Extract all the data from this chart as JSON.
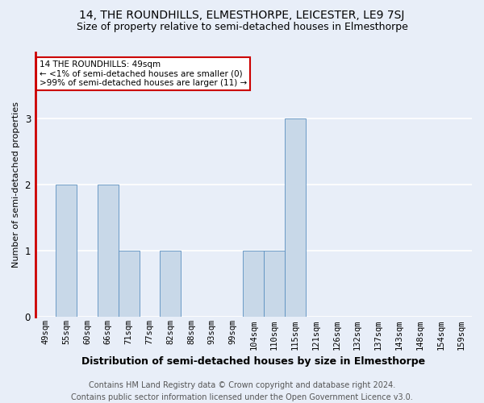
{
  "title": "14, THE ROUNDHILLS, ELMESTHORPE, LEICESTER, LE9 7SJ",
  "subtitle": "Size of property relative to semi-detached houses in Elmesthorpe",
  "xlabel": "Distribution of semi-detached houses by size in Elmesthorpe",
  "ylabel": "Number of semi-detached properties",
  "footer_line1": "Contains HM Land Registry data © Crown copyright and database right 2024.",
  "footer_line2": "Contains public sector information licensed under the Open Government Licence v3.0.",
  "categories": [
    "49sqm",
    "55sqm",
    "60sqm",
    "66sqm",
    "71sqm",
    "77sqm",
    "82sqm",
    "88sqm",
    "93sqm",
    "99sqm",
    "104sqm",
    "110sqm",
    "115sqm",
    "121sqm",
    "126sqm",
    "132sqm",
    "137sqm",
    "143sqm",
    "148sqm",
    "154sqm",
    "159sqm"
  ],
  "values": [
    0,
    2,
    0,
    2,
    1,
    0,
    1,
    0,
    0,
    0,
    1,
    1,
    3,
    0,
    0,
    0,
    0,
    0,
    0,
    0,
    0
  ],
  "bar_color": "#c8d8e8",
  "bar_edge_color": "#5a8fc0",
  "highlight_bar_index": 0,
  "highlight_color": "#cc0000",
  "annotation_box_text": "14 THE ROUNDHILLS: 49sqm\n← <1% of semi-detached houses are smaller (0)\n>99% of semi-detached houses are larger (11) →",
  "annotation_box_color": "#ffffff",
  "annotation_box_edge_color": "#cc0000",
  "ylim": [
    0,
    4
  ],
  "yticks": [
    0,
    1,
    2,
    3
  ],
  "background_color": "#e8eef8",
  "grid_color": "#ffffff",
  "title_fontsize": 10,
  "subtitle_fontsize": 9,
  "xlabel_fontsize": 9,
  "ylabel_fontsize": 8,
  "tick_fontsize": 7.5,
  "footer_fontsize": 7,
  "ann_fontsize": 7.5
}
